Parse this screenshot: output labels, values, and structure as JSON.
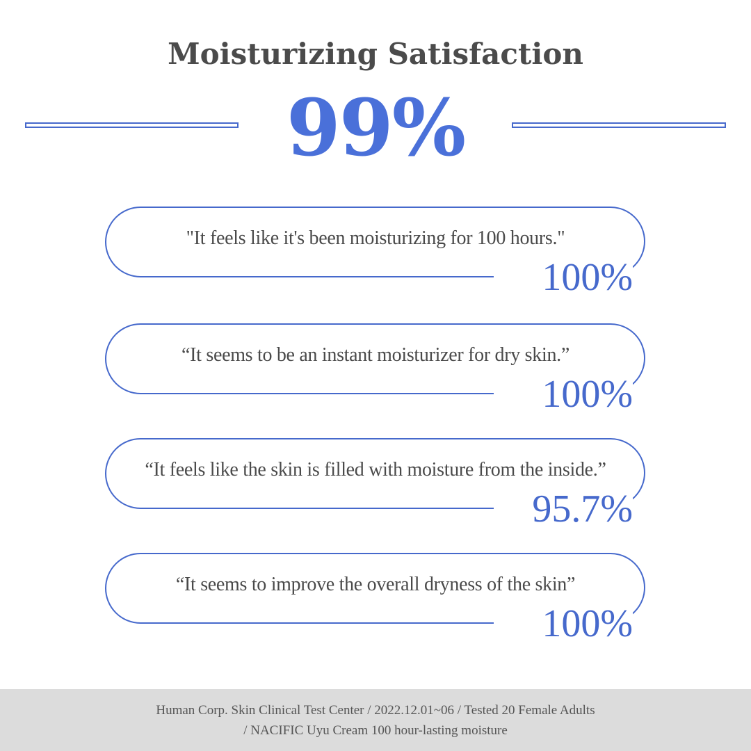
{
  "colors": {
    "title": "#4b4b4b",
    "accent": "#4669cc",
    "big_stat": "#4a70d9",
    "quote_text": "#4a4a4a",
    "footer_bg": "#dcdcdc",
    "footer_text": "#555555",
    "background": "#ffffff"
  },
  "header": {
    "title": "Moisturizing Satisfaction",
    "stat": "99%"
  },
  "results": [
    {
      "quote": "\"It feels like it's been moisturizing for 100 hours.\"",
      "value": "100%"
    },
    {
      "quote": "“It seems to be an instant moisturizer for dry skin.”",
      "value": "100%"
    },
    {
      "quote": "“It feels like the skin is filled with moisture from the inside.”",
      "value": "95.7%"
    },
    {
      "quote": "“It seems to improve the overall dryness of the skin”",
      "value": "100%"
    }
  ],
  "footer": {
    "line1": "Human Corp. Skin Clinical Test Center / 2022.12.01~06 / Tested 20 Female Adults",
    "line2": "/ NACIFIC Uyu Cream 100 hour-lasting moisture"
  }
}
